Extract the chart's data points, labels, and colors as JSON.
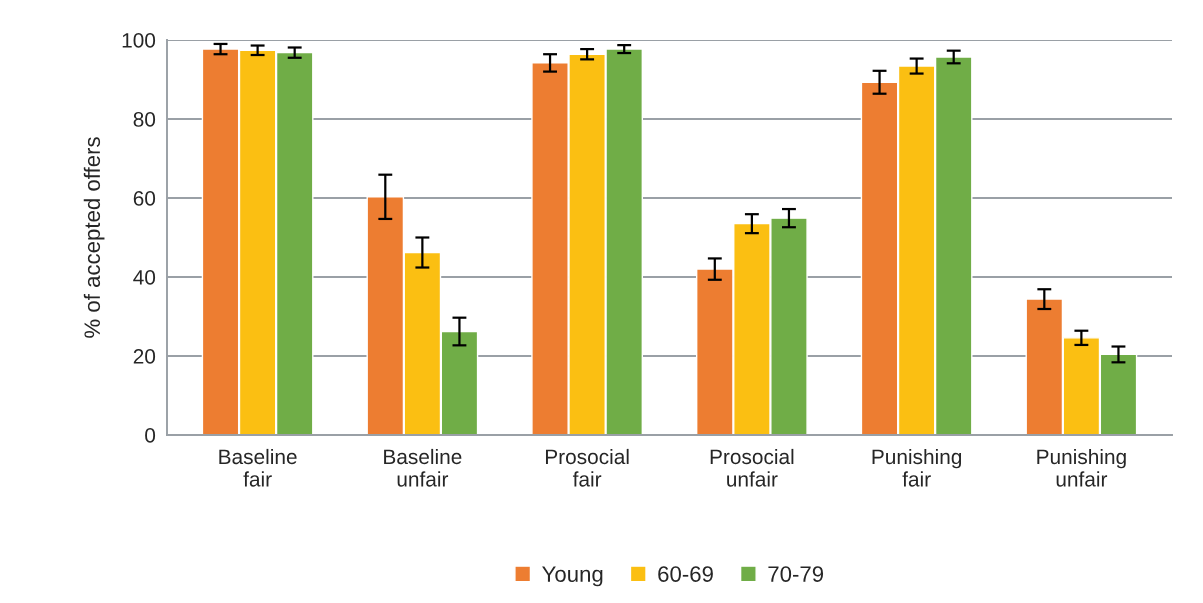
{
  "chart_data": {
    "type": "bar",
    "ylabel": "% of accepted offers",
    "categories": [
      "Baseline\nfair",
      "Baseline\nunfair",
      "Prosocial\nfair",
      "Prosocial\nunfair",
      "Punishing\nfair",
      "Punishing\nunfair"
    ],
    "series": [
      {
        "name": "Young",
        "color": "#ed7d31",
        "values": [
          97.7,
          60.3,
          94.2,
          42.0,
          89.3,
          34.4
        ],
        "errors": [
          1.3,
          5.6,
          2.2,
          2.7,
          2.9,
          2.5
        ]
      },
      {
        "name": "60-69",
        "color": "#fbbf12",
        "values": [
          97.4,
          46.2,
          96.4,
          53.5,
          93.4,
          24.6
        ],
        "errors": [
          1.2,
          3.8,
          1.3,
          2.4,
          1.9,
          1.8
        ]
      },
      {
        "name": "70-79",
        "color": "#70ad47",
        "values": [
          96.8,
          26.2,
          97.7,
          54.9,
          95.7,
          20.4
        ],
        "errors": [
          1.3,
          3.5,
          1.0,
          2.3,
          1.6,
          2.0
        ]
      }
    ],
    "ylim": [
      0,
      100
    ],
    "yticks": [
      0,
      20,
      40,
      60,
      80,
      100
    ],
    "grid": "y",
    "legend": "bottom"
  }
}
